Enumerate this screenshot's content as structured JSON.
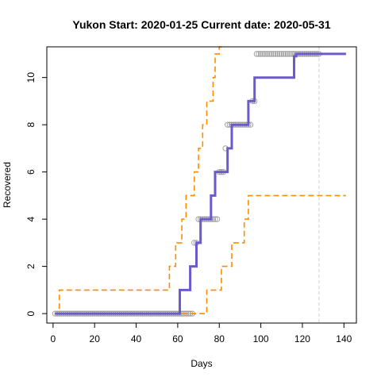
{
  "chart_data": {
    "type": "line",
    "title": "Yukon Start:  2020-01-25   Current date:  2020-05-31",
    "xlabel": "Days",
    "ylabel": "Recovered",
    "xlim": [
      -3,
      146
    ],
    "ylim": [
      -0.4,
      11.3
    ],
    "xticks": [
      0,
      20,
      40,
      60,
      80,
      100,
      120,
      140
    ],
    "yticks": [
      0,
      2,
      4,
      6,
      8,
      10
    ],
    "current_day": 128,
    "colors": {
      "observed": "#999999",
      "fit": "#6A5ACD",
      "band": "#FF8C00",
      "current_line": "#cccccc",
      "frame": "#000000"
    },
    "series": [
      {
        "role": "observed",
        "x": [
          1,
          2,
          3,
          4,
          5,
          6,
          7,
          8,
          9,
          10,
          11,
          12,
          13,
          14,
          15,
          16,
          17,
          18,
          19,
          20,
          21,
          22,
          23,
          24,
          25,
          26,
          27,
          28,
          29,
          30,
          31,
          32,
          33,
          34,
          35,
          36,
          37,
          38,
          39,
          40,
          41,
          42,
          43,
          44,
          45,
          46,
          47,
          48,
          49,
          50,
          51,
          52,
          53,
          54,
          55,
          56,
          57,
          58,
          59,
          60,
          61,
          62,
          63,
          64,
          65,
          66,
          67,
          68,
          69,
          70,
          71,
          72,
          73,
          74,
          75,
          76,
          77,
          78,
          79,
          80,
          81,
          82,
          83,
          84,
          85,
          86,
          87,
          88,
          89,
          90,
          91,
          92,
          93,
          94,
          95,
          96,
          97,
          98,
          99,
          100,
          101,
          102,
          103,
          104,
          105,
          106,
          107,
          108,
          109,
          110,
          111,
          112,
          113,
          114,
          115,
          116,
          117,
          118,
          119,
          120,
          121,
          122,
          123,
          124,
          125,
          126,
          127,
          128
        ],
        "y": [
          0,
          0,
          0,
          0,
          0,
          0,
          0,
          0,
          0,
          0,
          0,
          0,
          0,
          0,
          0,
          0,
          0,
          0,
          0,
          0,
          0,
          0,
          0,
          0,
          0,
          0,
          0,
          0,
          0,
          0,
          0,
          0,
          0,
          0,
          0,
          0,
          0,
          0,
          0,
          0,
          0,
          0,
          0,
          0,
          0,
          0,
          0,
          0,
          0,
          0,
          0,
          0,
          0,
          0,
          0,
          0,
          0,
          0,
          0,
          0,
          0,
          0,
          0,
          0,
          0,
          0,
          0,
          3,
          3,
          4,
          4,
          4,
          4,
          4,
          4,
          4,
          4,
          4,
          4,
          6,
          6,
          6,
          7,
          8,
          8,
          8,
          8,
          8,
          8,
          8,
          8,
          8,
          8,
          8,
          8,
          9,
          9,
          11,
          11,
          11,
          11,
          11,
          11,
          11,
          11,
          11,
          11,
          11,
          11,
          11,
          11,
          11,
          11,
          11,
          11,
          11,
          11,
          11,
          11,
          11,
          11,
          11,
          11,
          11,
          11,
          11,
          11,
          11
        ]
      },
      {
        "role": "fit",
        "x": [
          1,
          61,
          61,
          66,
          66,
          69,
          69,
          71,
          71,
          74,
          74,
          76,
          76,
          78,
          78,
          80,
          80,
          84,
          84,
          86,
          86,
          89,
          89,
          94,
          94,
          97,
          97,
          100,
          100,
          116,
          116,
          117,
          117,
          141
        ],
        "y": [
          0,
          0,
          1,
          1,
          2,
          2,
          3,
          3,
          4,
          4,
          4,
          4,
          5,
          5,
          6,
          6,
          6,
          6,
          7,
          7,
          8,
          8,
          8,
          8,
          9,
          9,
          10,
          10,
          10,
          10,
          10.9,
          10.9,
          11,
          11
        ]
      },
      {
        "role": "upper",
        "x": [
          1,
          3,
          3,
          56,
          56,
          59,
          59,
          62,
          62,
          64,
          64,
          67,
          67,
          68,
          68,
          70,
          70,
          72,
          72,
          74,
          74,
          77,
          77,
          78,
          78,
          80,
          80,
          81.5
        ],
        "y": [
          0,
          0,
          1,
          1,
          2,
          2,
          3,
          3,
          4,
          4,
          5,
          5,
          5,
          5,
          6,
          6,
          7,
          7,
          8,
          8,
          9,
          9,
          10,
          10,
          11,
          11,
          11.3,
          11.3
        ]
      },
      {
        "role": "lower",
        "x": [
          62,
          74,
          74,
          81,
          81,
          86,
          86,
          92,
          92,
          94,
          94,
          107,
          107,
          141
        ],
        "y": [
          0,
          0,
          1,
          1,
          2,
          2,
          3,
          3,
          4,
          4,
          5,
          5,
          5,
          5
        ]
      }
    ]
  }
}
